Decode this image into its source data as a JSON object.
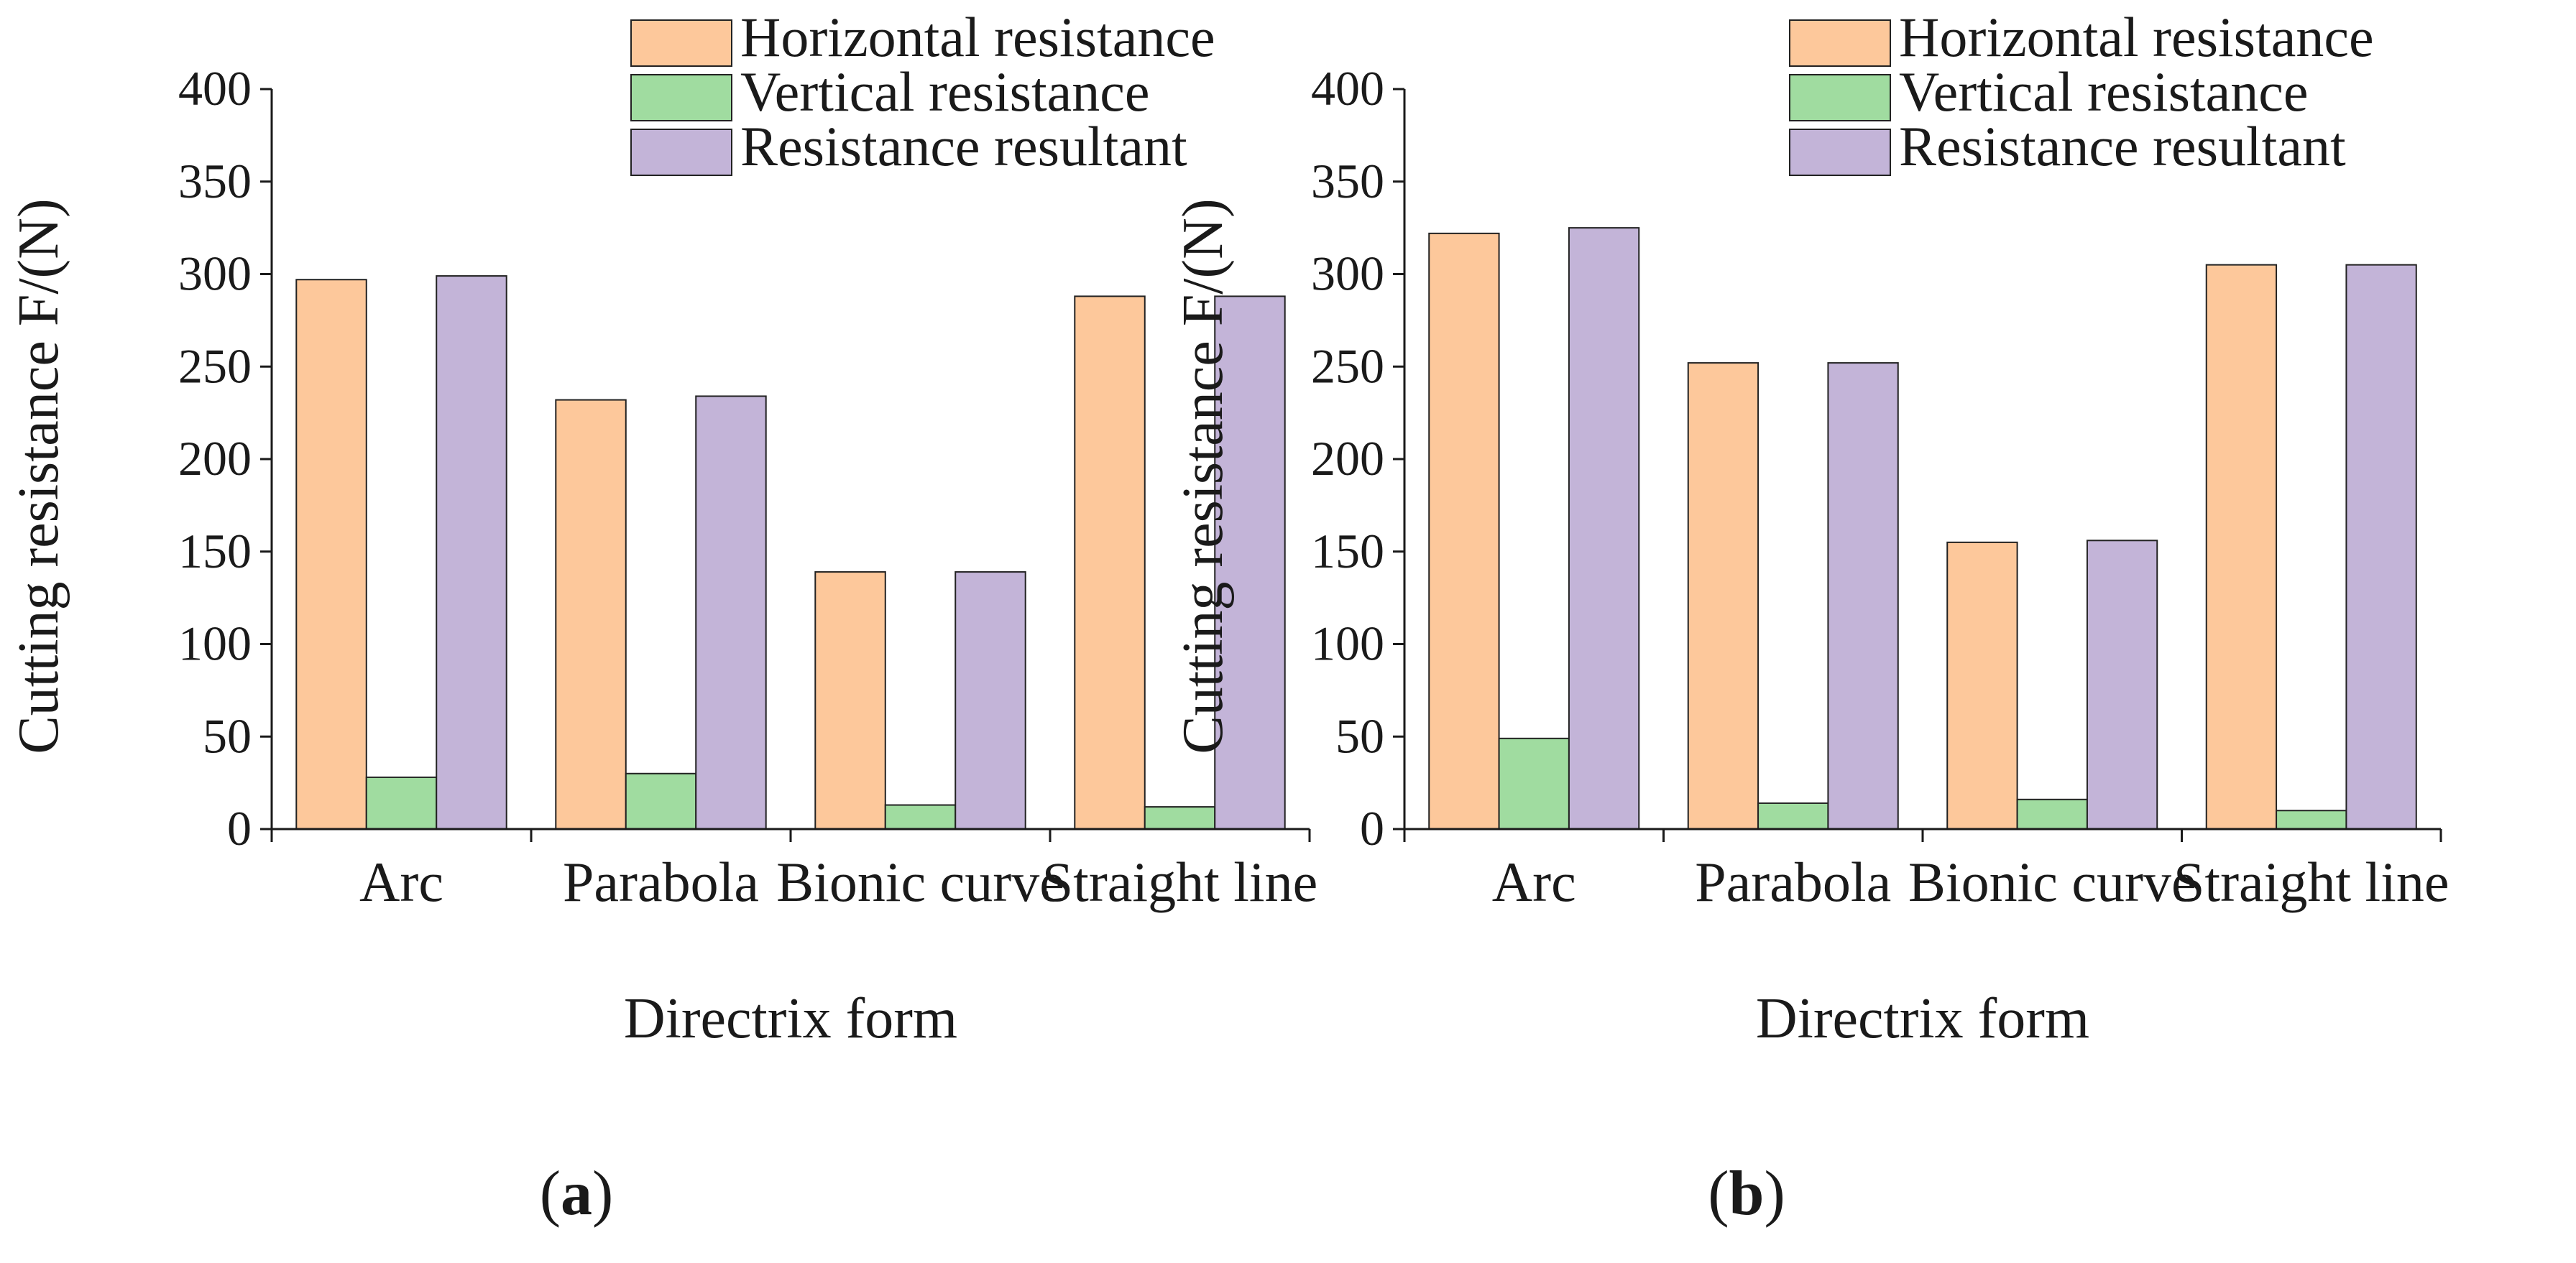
{
  "figure": {
    "panels": [
      "(a)",
      "(b)"
    ]
  },
  "colors": {
    "horizontal": "#FDC89B",
    "vertical": "#A0DCA0",
    "resultant": "#C3B4D8",
    "axis": "#1a1a1a"
  },
  "chart_data": [
    {
      "type": "bar",
      "panel": "(a)",
      "panel_letter": "a",
      "title": "",
      "xlabel": "Directrix form",
      "ylabel": "Cutting resistance F/(N)",
      "ylim": [
        0,
        400
      ],
      "yticks": [
        0,
        50,
        100,
        150,
        200,
        250,
        300,
        350,
        400
      ],
      "categories": [
        "Arc",
        "Parabola",
        "Bionic curve",
        "Straight line"
      ],
      "series": [
        {
          "name": "Horizontal resistance",
          "color_key": "horizontal",
          "values": [
            297,
            232,
            139,
            288
          ]
        },
        {
          "name": "Vertical resistance",
          "color_key": "vertical",
          "values": [
            28,
            30,
            13,
            12
          ]
        },
        {
          "name": "Resistance resultant",
          "color_key": "resultant",
          "values": [
            299,
            234,
            139,
            288
          ]
        }
      ],
      "legend": "top-right",
      "grid": false
    },
    {
      "type": "bar",
      "panel": "(b)",
      "panel_letter": "b",
      "title": "",
      "xlabel": "Directrix form",
      "ylabel": "Cutting resistance F/(N)",
      "ylim": [
        0,
        400
      ],
      "yticks": [
        0,
        50,
        100,
        150,
        200,
        250,
        300,
        350,
        400
      ],
      "categories": [
        "Arc",
        "Parabola",
        "Bionic curve",
        "Straight line"
      ],
      "series": [
        {
          "name": "Horizontal resistance",
          "color_key": "horizontal",
          "values": [
            322,
            252,
            155,
            305
          ]
        },
        {
          "name": "Vertical resistance",
          "color_key": "vertical",
          "values": [
            49,
            14,
            16,
            10
          ]
        },
        {
          "name": "Resistance resultant",
          "color_key": "resultant",
          "values": [
            325,
            252,
            156,
            305
          ]
        }
      ],
      "legend": "top-right",
      "grid": false
    }
  ]
}
